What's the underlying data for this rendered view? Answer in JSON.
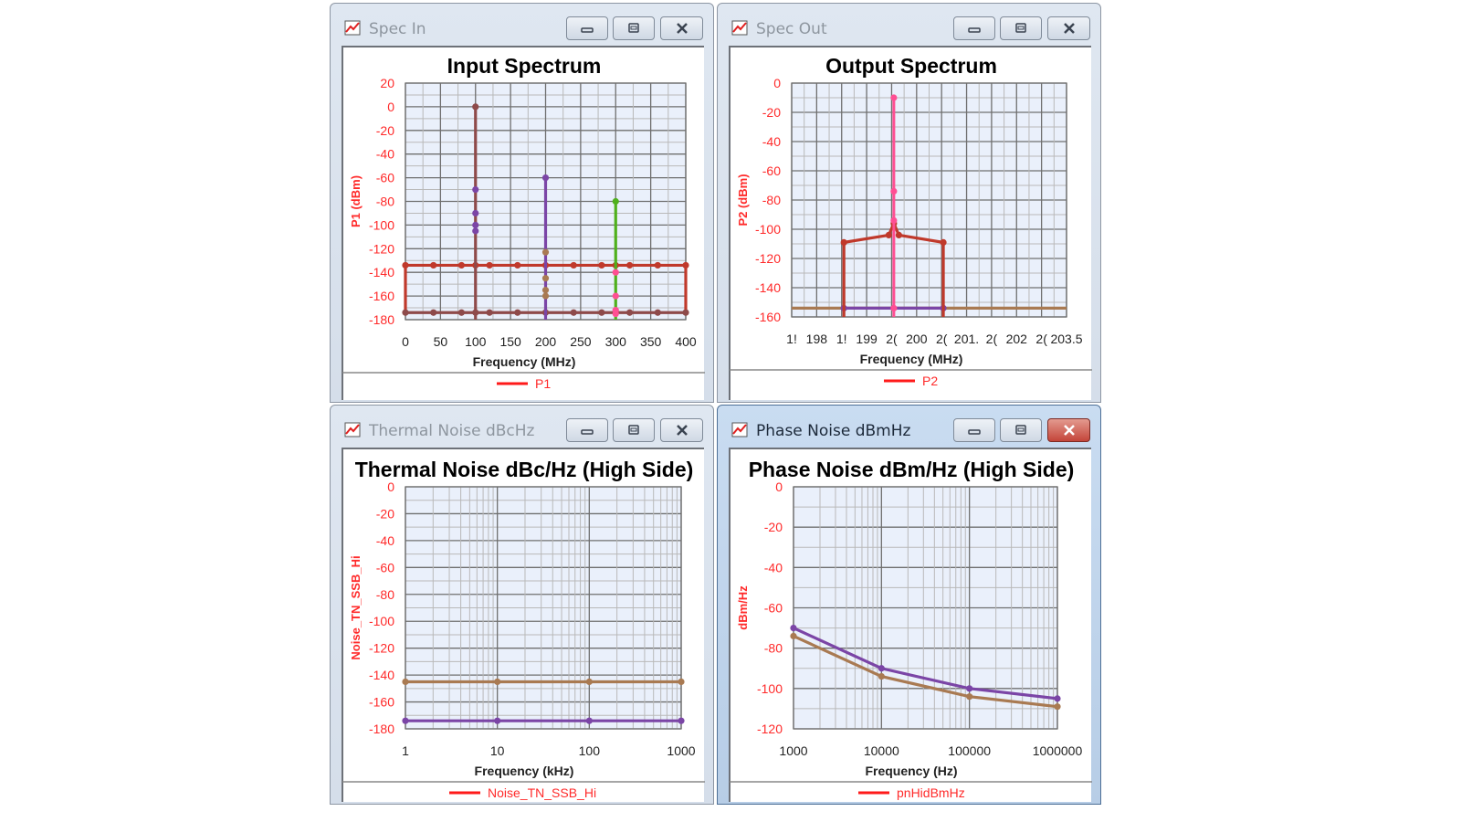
{
  "windows": [
    {
      "title": "Spec In",
      "active": false
    },
    {
      "title": "Spec Out",
      "active": false
    },
    {
      "title": "Thermal Noise dBcHz",
      "active": false
    },
    {
      "title": "Phase Noise dBmHz",
      "active": true
    }
  ],
  "colors": {
    "axis_text": "#ff2a2a",
    "plot_bg": "#eaf0fb",
    "brown": "#a0463a",
    "red": "#c0392b",
    "purple": "#7b45a6",
    "tan": "#a97a52",
    "green": "#4fb01c",
    "pink": "#ff4f93",
    "maroon": "#8e4a4a"
  },
  "chart_data": [
    {
      "type": "line",
      "title": "Input Spectrum",
      "xlabel": "Frequency (MHz)",
      "ylabel": "P1 (dBm)",
      "legend": [
        "P1"
      ],
      "legend_placement": "bottom",
      "grid": true,
      "xscale": "linear",
      "xlim": [
        0,
        400
      ],
      "ylim": [
        -180,
        20
      ],
      "xticks": [
        0,
        50,
        100,
        150,
        200,
        250,
        300,
        350,
        400
      ],
      "xtick_labels": [
        "0",
        "50",
        "100",
        "150",
        "200",
        "250",
        "300",
        "350",
        "400"
      ],
      "yticks": [
        20,
        0,
        -20,
        -40,
        -60,
        -80,
        -100,
        -120,
        -140,
        -160,
        -180
      ],
      "ytick_labels": [
        "20",
        "0",
        "-20",
        "-40",
        "-60",
        "-80",
        "-100",
        "-120",
        "-140",
        "-160",
        "-180"
      ],
      "series": [
        {
          "color": "red",
          "mode": "line",
          "points": [
            [
              0,
              -175
            ],
            [
              0,
              -134
            ],
            [
              400,
              -134
            ],
            [
              400,
              -175
            ]
          ],
          "markers": [
            [
              0,
              -134
            ],
            [
              40,
              -134
            ],
            [
              80,
              -134
            ],
            [
              100,
              -134
            ],
            [
              120,
              -134
            ],
            [
              160,
              -134
            ],
            [
              200,
              -134
            ],
            [
              240,
              -134
            ],
            [
              280,
              -134
            ],
            [
              300,
              -134
            ],
            [
              320,
              -134
            ],
            [
              360,
              -134
            ],
            [
              400,
              -134
            ]
          ]
        },
        {
          "color": "maroon",
          "mode": "line",
          "points": [
            [
              0,
              -174
            ],
            [
              400,
              -174
            ]
          ],
          "markers": [
            [
              0,
              -174
            ],
            [
              40,
              -174
            ],
            [
              80,
              -174
            ],
            [
              100,
              -174
            ],
            [
              120,
              -174
            ],
            [
              160,
              -174
            ],
            [
              200,
              -174
            ],
            [
              240,
              -174
            ],
            [
              280,
              -174
            ],
            [
              300,
              -174
            ],
            [
              320,
              -174
            ],
            [
              360,
              -174
            ],
            [
              400,
              -174
            ]
          ]
        },
        {
          "color": "maroon",
          "mode": "line",
          "points": [
            [
              100,
              -180
            ],
            [
              100,
              0
            ]
          ],
          "markers": [
            [
              100,
              0
            ]
          ]
        },
        {
          "color": "purple",
          "mode": "markers",
          "points": [],
          "markers": [
            [
              100,
              -70
            ],
            [
              100,
              -90
            ],
            [
              100,
              -100
            ],
            [
              100,
              -105
            ]
          ]
        },
        {
          "color": "purple",
          "mode": "line",
          "points": [
            [
              200,
              -180
            ],
            [
              200,
              -60
            ]
          ],
          "markers": [
            [
              200,
              -60
            ]
          ]
        },
        {
          "color": "tan",
          "mode": "markers",
          "points": [],
          "markers": [
            [
              200,
              -123
            ],
            [
              200,
              -145
            ],
            [
              200,
              -155
            ],
            [
              200,
              -160
            ]
          ]
        },
        {
          "color": "green",
          "mode": "line",
          "points": [
            [
              300,
              -180
            ],
            [
              300,
              -80
            ]
          ],
          "markers": [
            [
              300,
              -80
            ]
          ]
        },
        {
          "color": "pink",
          "mode": "markers",
          "points": [],
          "markers": [
            [
              300,
              -140
            ],
            [
              300,
              -160
            ],
            [
              300,
              -172
            ],
            [
              300,
              -175
            ]
          ]
        }
      ]
    },
    {
      "type": "line",
      "title": "Output Spectrum",
      "xlabel": "Frequency (MHz)",
      "ylabel": "P2 (dBm)",
      "legend": [
        "P2"
      ],
      "legend_placement": "bottom",
      "grid": true,
      "xscale": "linear",
      "xlim": [
        197.5,
        203.5
      ],
      "ylim": [
        -160,
        0
      ],
      "xtick_labels": [
        "1!",
        "198",
        "1!",
        "199",
        "2(",
        "200",
        "2(",
        "201.",
        "2(",
        "202",
        "2(",
        "203.5"
      ],
      "yticks": [
        0,
        -20,
        -40,
        -60,
        -80,
        -100,
        -120,
        -140,
        -160
      ],
      "ytick_labels": [
        "0",
        "-20",
        "-40",
        "-60",
        "-80",
        "-100",
        "-120",
        "-140",
        "-160"
      ],
      "series": [
        {
          "color": "tan",
          "mode": "line",
          "points": [
            [
              197.5,
              -154
            ],
            [
              203.5,
              -154
            ]
          ],
          "markers": []
        },
        {
          "color": "purple",
          "mode": "line",
          "points": [
            [
              198.64,
              -154
            ],
            [
              200.81,
              -154
            ]
          ],
          "markers": [
            [
              198.64,
              -154
            ],
            [
              200.81,
              -154
            ]
          ]
        },
        {
          "color": "red",
          "mode": "line",
          "points": [
            [
              198.64,
              -160
            ],
            [
              198.64,
              -109
            ],
            [
              199.62,
              -104
            ],
            [
              199.73,
              -96
            ],
            [
              199.84,
              -104
            ],
            [
              200.81,
              -109
            ],
            [
              200.81,
              -160
            ]
          ],
          "markers": [
            [
              198.64,
              -109
            ],
            [
              199.62,
              -104
            ],
            [
              199.73,
              -96
            ],
            [
              199.84,
              -104
            ],
            [
              200.81,
              -109
            ]
          ]
        },
        {
          "color": "pink",
          "mode": "line",
          "points": [
            [
              199.73,
              -160
            ],
            [
              199.73,
              -10
            ]
          ],
          "markers": [
            [
              199.73,
              -10
            ],
            [
              199.73,
              -74
            ],
            [
              199.73,
              -94
            ],
            [
              199.73,
              -154
            ]
          ]
        }
      ]
    },
    {
      "type": "line",
      "title": "Thermal Noise dBc/Hz (High Side)",
      "xlabel": "Frequency (kHz)",
      "ylabel": "Noise_TN_SSB_Hi",
      "legend": [
        "Noise_TN_SSB_Hi"
      ],
      "legend_placement": "bottom",
      "grid": true,
      "xscale": "log",
      "xlim": [
        1,
        1000
      ],
      "ylim": [
        -180,
        0
      ],
      "xticks": [
        1,
        10,
        100,
        1000
      ],
      "xtick_labels": [
        "1",
        "10",
        "100",
        "1000"
      ],
      "yticks": [
        0,
        -20,
        -40,
        -60,
        -80,
        -100,
        -120,
        -140,
        -160,
        -180
      ],
      "ytick_labels": [
        "0",
        "-20",
        "-40",
        "-60",
        "-80",
        "-100",
        "-120",
        "-140",
        "-160",
        "-180"
      ],
      "series": [
        {
          "color": "tan",
          "mode": "line",
          "points": [
            [
              1,
              -145
            ],
            [
              10,
              -145
            ],
            [
              100,
              -145
            ],
            [
              1000,
              -145
            ]
          ],
          "markers": [
            [
              1,
              -145
            ],
            [
              10,
              -145
            ],
            [
              100,
              -145
            ],
            [
              1000,
              -145
            ]
          ]
        },
        {
          "color": "purple",
          "mode": "line",
          "points": [
            [
              1,
              -174
            ],
            [
              10,
              -174
            ],
            [
              100,
              -174
            ],
            [
              1000,
              -174
            ]
          ],
          "markers": [
            [
              1,
              -174
            ],
            [
              10,
              -174
            ],
            [
              100,
              -174
            ],
            [
              1000,
              -174
            ]
          ]
        }
      ]
    },
    {
      "type": "line",
      "title": "Phase Noise dBm/Hz (High Side)",
      "xlabel": "Frequency (Hz)",
      "ylabel": "dBm/Hz",
      "legend": [
        "pnHidBmHz"
      ],
      "legend_placement": "bottom",
      "grid": true,
      "xscale": "log",
      "xlim": [
        1000,
        1000000
      ],
      "ylim": [
        -120,
        0
      ],
      "xticks": [
        1000,
        10000,
        100000,
        1000000
      ],
      "xtick_labels": [
        "1000",
        "10000",
        "100000",
        "1000000"
      ],
      "yticks": [
        0,
        -20,
        -40,
        -60,
        -80,
        -100,
        -120
      ],
      "ytick_labels": [
        "0",
        "-20",
        "-40",
        "-60",
        "-80",
        "-100",
        "-120"
      ],
      "series": [
        {
          "color": "tan",
          "mode": "line",
          "points": [
            [
              1000,
              -74
            ],
            [
              10000,
              -94
            ],
            [
              100000,
              -104
            ],
            [
              1000000,
              -109
            ]
          ],
          "markers": [
            [
              1000,
              -74
            ],
            [
              10000,
              -94
            ],
            [
              100000,
              -104
            ],
            [
              1000000,
              -109
            ]
          ]
        },
        {
          "color": "purple",
          "mode": "line",
          "points": [
            [
              1000,
              -70
            ],
            [
              10000,
              -90
            ],
            [
              100000,
              -100
            ],
            [
              1000000,
              -105
            ]
          ],
          "markers": [
            [
              1000,
              -70
            ],
            [
              10000,
              -90
            ],
            [
              100000,
              -100
            ],
            [
              1000000,
              -105
            ]
          ]
        }
      ]
    }
  ]
}
